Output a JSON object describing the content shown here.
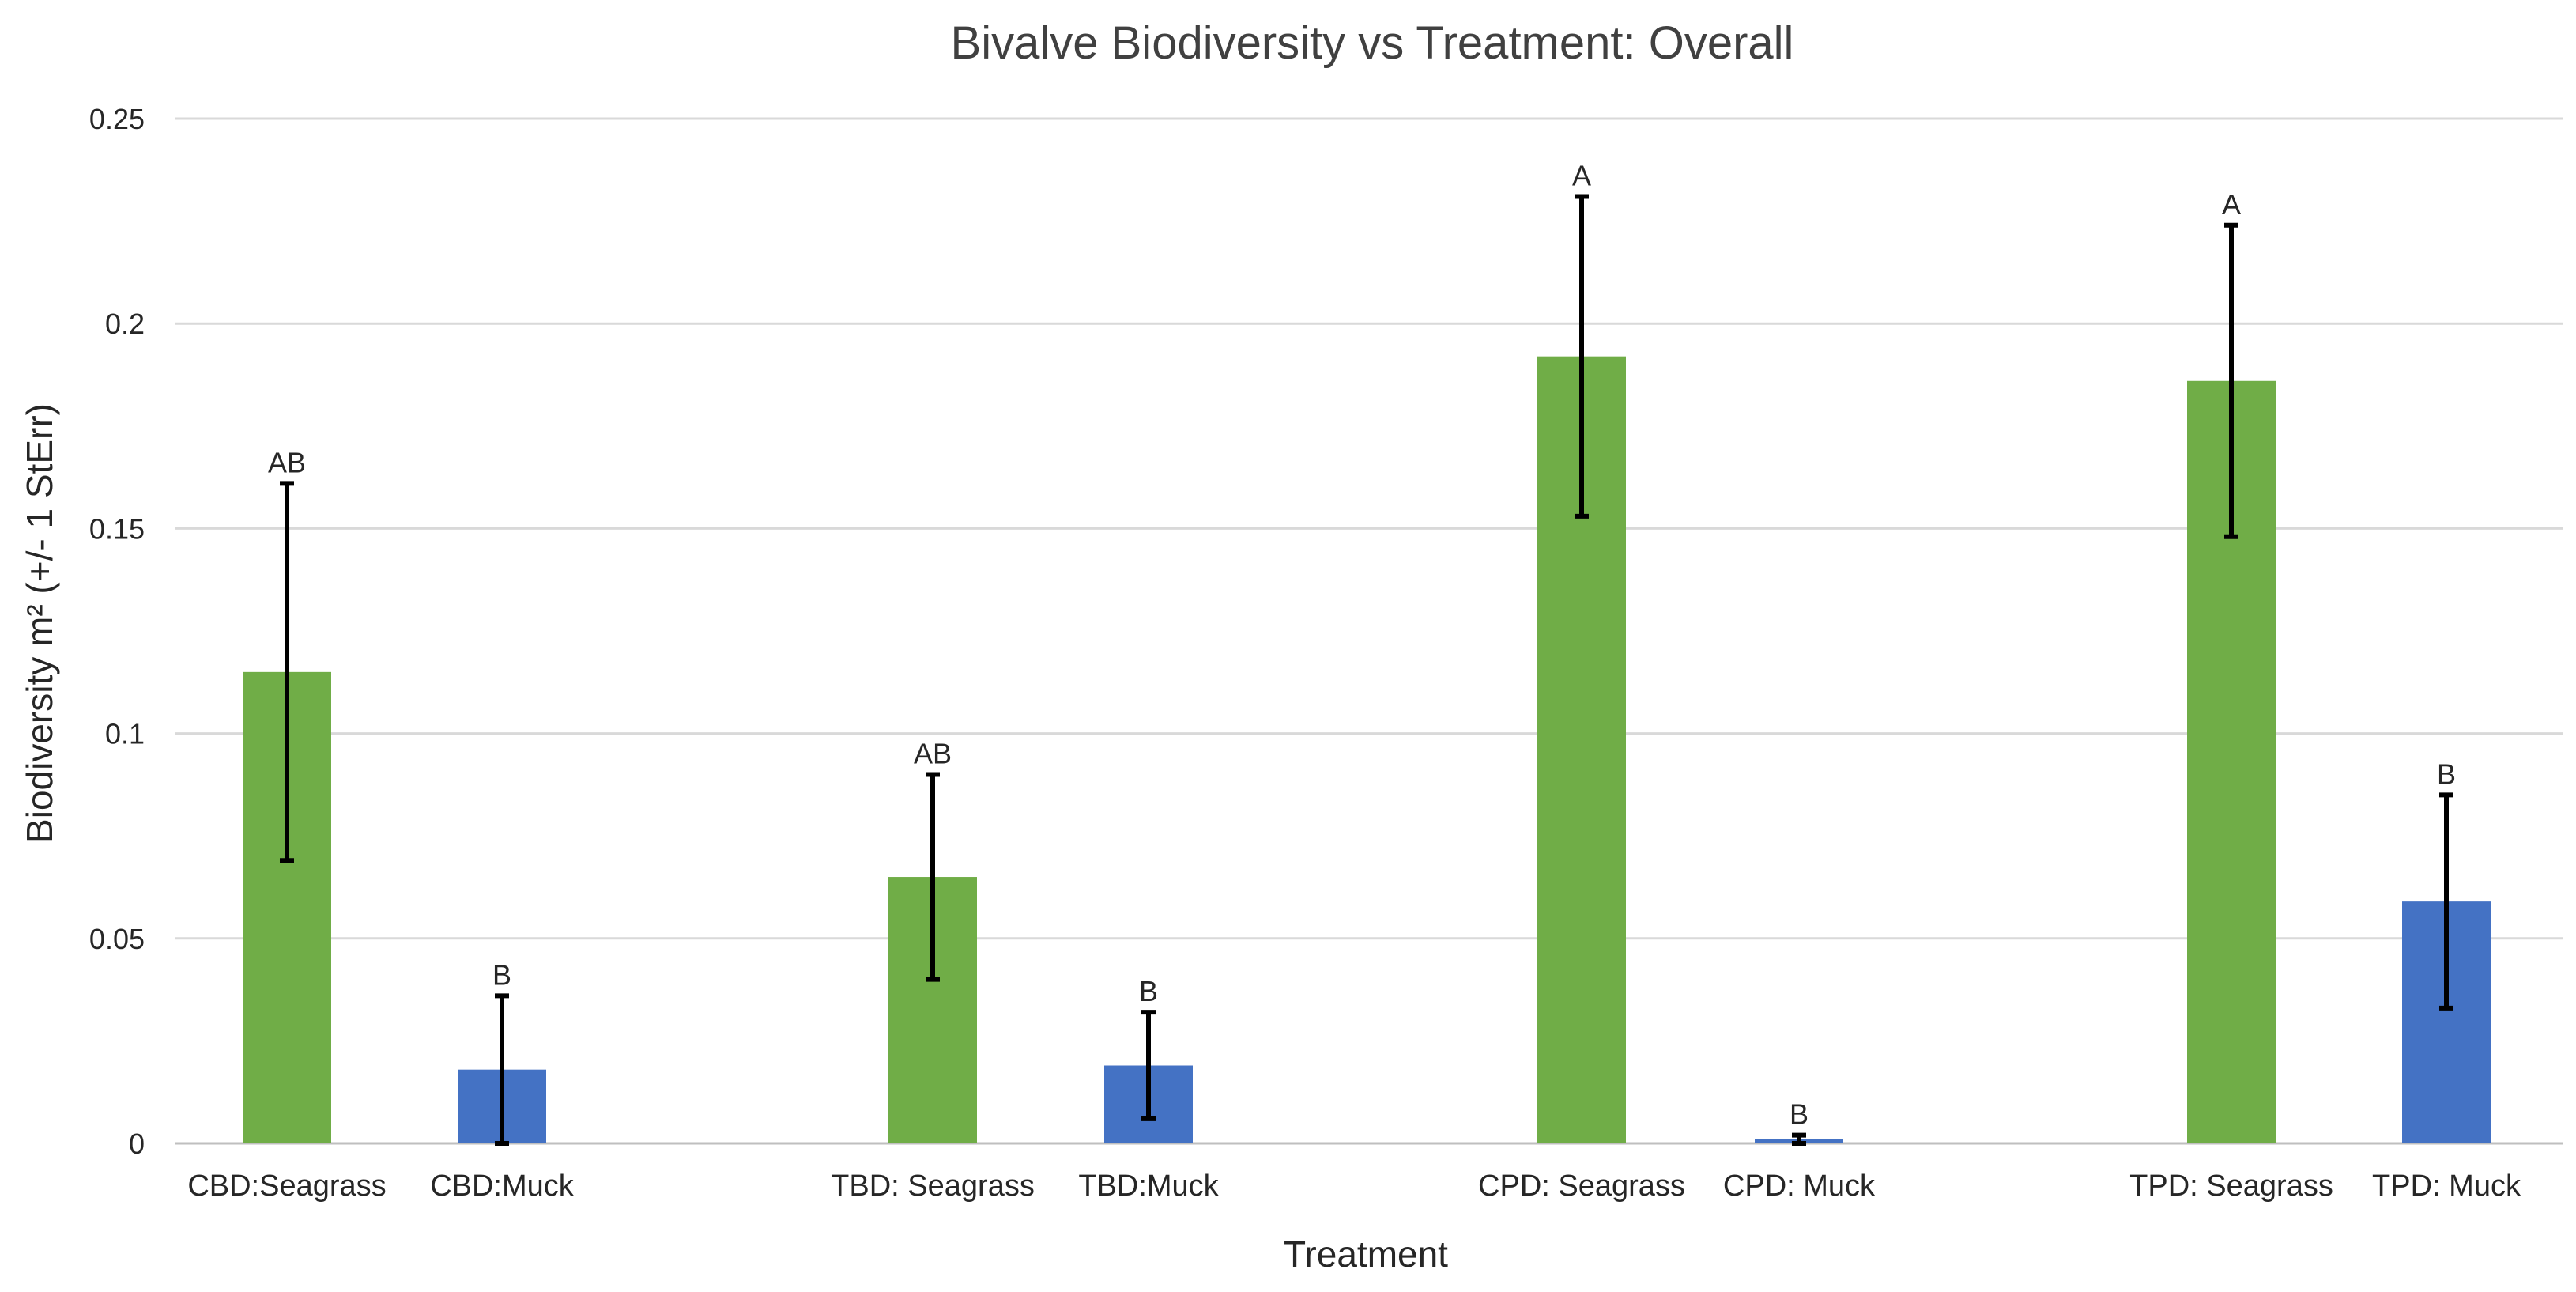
{
  "chart_data": {
    "type": "bar",
    "title": "Bivalve Biodiversity vs Treatment: Overall",
    "xlabel": "Treatment",
    "ylabel": "Biodiversity m² (+/- 1 StErr)",
    "ylim": [
      0,
      0.25
    ],
    "yticks": [
      "0",
      "0.05",
      "0.1",
      "0.15",
      "0.2",
      "0.25"
    ],
    "ytick_values": [
      0,
      0.05,
      0.1,
      0.15,
      0.2,
      0.25
    ],
    "grid": true,
    "legend": "none",
    "colors": {
      "seagrass": "#70ad47",
      "muck": "#4472c4",
      "error": "#000000",
      "grid": "#d9d9d9"
    },
    "bars": [
      {
        "category": "CBD:Seagrass",
        "value": 0.115,
        "error": 0.046,
        "group": "seagrass",
        "sig": "AB"
      },
      {
        "category": "CBD:Muck",
        "value": 0.018,
        "error": 0.018,
        "group": "muck",
        "sig": "B"
      },
      {
        "category": "TBD: Seagrass",
        "value": 0.065,
        "error": 0.025,
        "group": "seagrass",
        "sig": "AB"
      },
      {
        "category": "TBD:Muck",
        "value": 0.019,
        "error": 0.013,
        "group": "muck",
        "sig": "B"
      },
      {
        "category": "CPD: Seagrass",
        "value": 0.192,
        "error": 0.039,
        "group": "seagrass",
        "sig": "A"
      },
      {
        "category": "CPD: Muck",
        "value": 0.001,
        "error": 0.001,
        "group": "muck",
        "sig": "B"
      },
      {
        "category": "TPD: Seagrass",
        "value": 0.186,
        "error": 0.038,
        "group": "seagrass",
        "sig": "A"
      },
      {
        "category": "TPD: Muck",
        "value": 0.059,
        "error": 0.026,
        "group": "muck",
        "sig": "B"
      }
    ]
  }
}
